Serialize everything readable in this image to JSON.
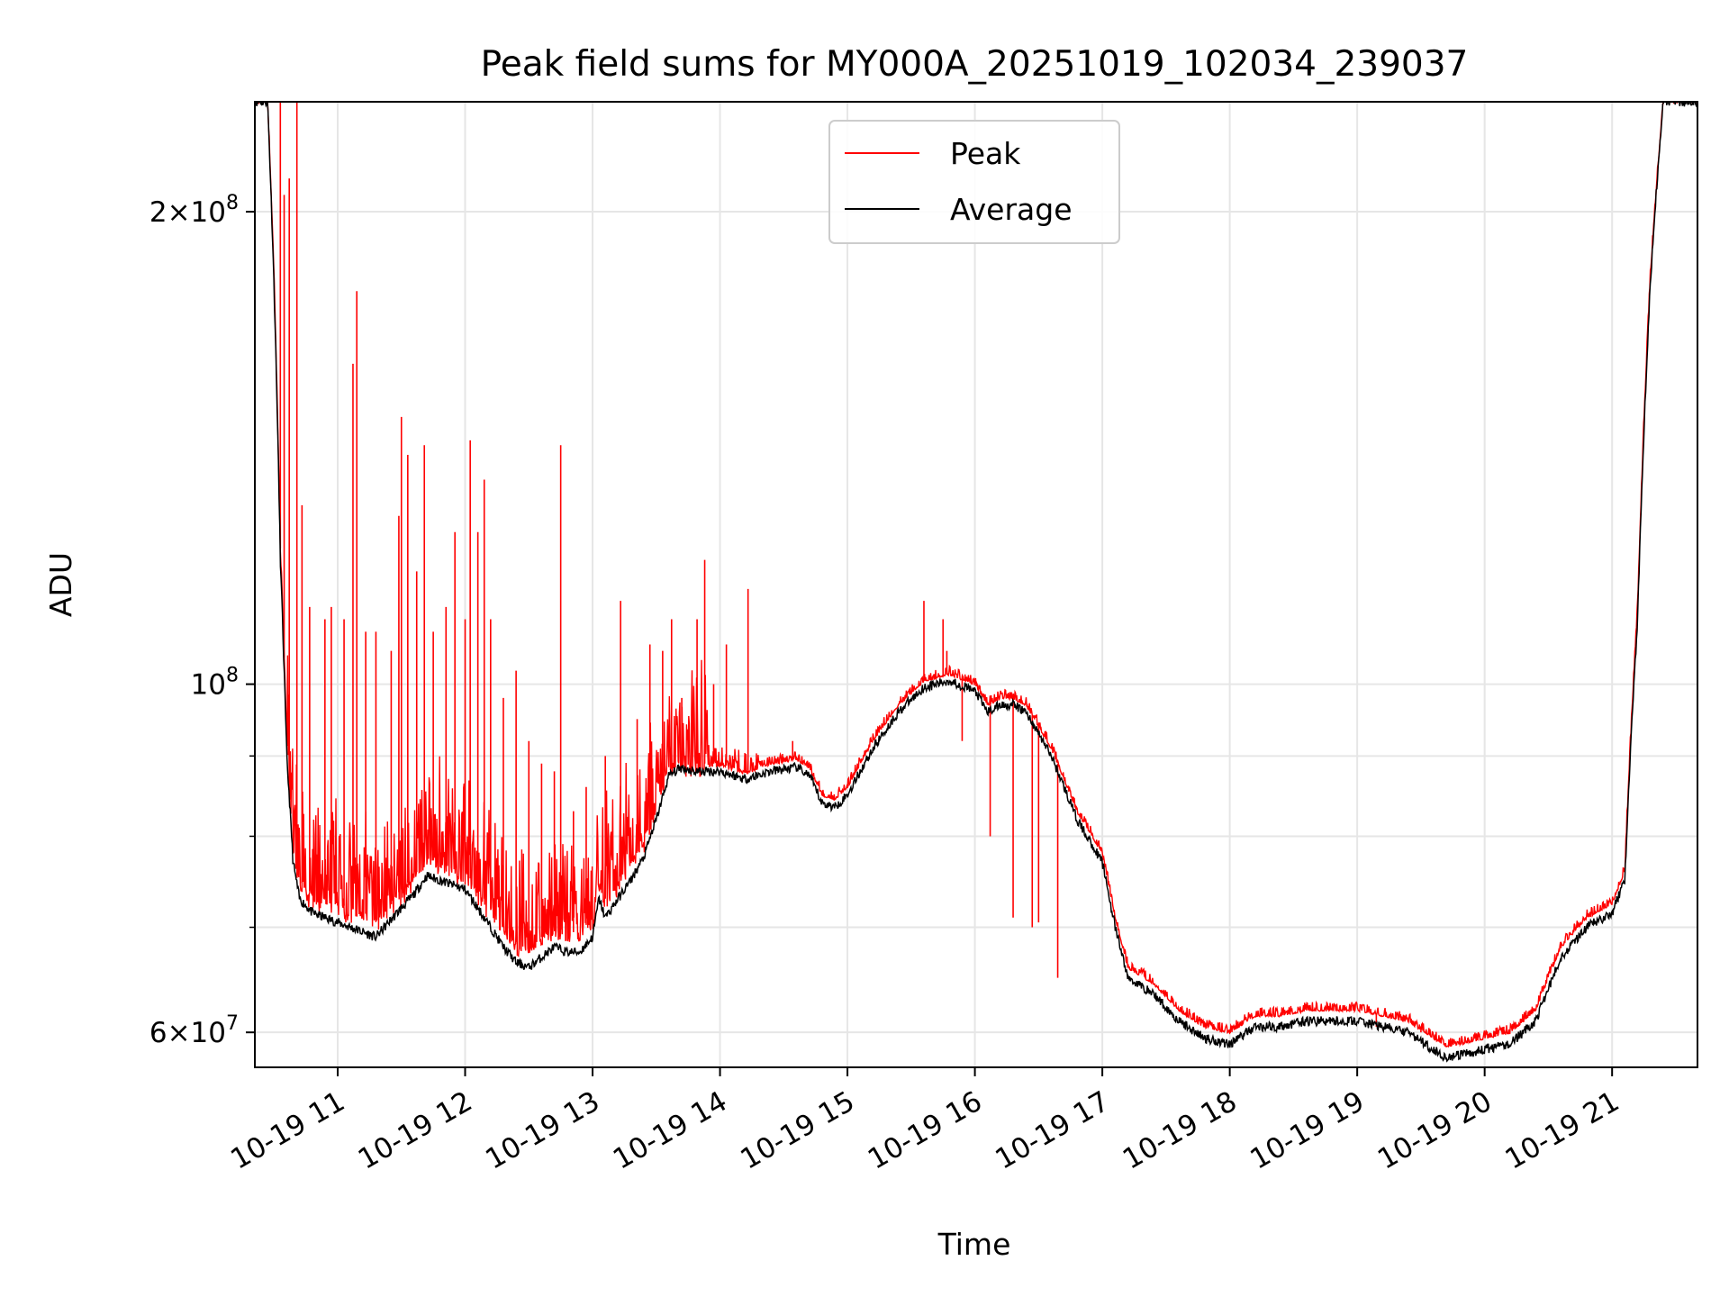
{
  "chart_data": {
    "type": "line",
    "title": "Peak field sums for MY000A_20251019_102034_239037",
    "xlabel": "Time",
    "ylabel": "ADU",
    "yscale": "log",
    "grid": true,
    "legend_position": "top-center",
    "xlim": [
      10.35,
      21.67
    ],
    "ylim": [
      57000000,
      235000000
    ],
    "x_ticks": [
      {
        "value": 11,
        "label": "10-19 11"
      },
      {
        "value": 12,
        "label": "10-19 12"
      },
      {
        "value": 13,
        "label": "10-19 13"
      },
      {
        "value": 14,
        "label": "10-19 14"
      },
      {
        "value": 15,
        "label": "10-19 15"
      },
      {
        "value": 16,
        "label": "10-19 16"
      },
      {
        "value": 17,
        "label": "10-19 17"
      },
      {
        "value": 18,
        "label": "10-19 18"
      },
      {
        "value": 19,
        "label": "10-19 19"
      },
      {
        "value": 20,
        "label": "10-19 20"
      },
      {
        "value": 21,
        "label": "10-19 21"
      }
    ],
    "y_ticks": [
      {
        "value": 60000000,
        "base": "6",
        "exp": "7"
      },
      {
        "value": 100000000,
        "base": "",
        "exp": "8"
      },
      {
        "value": 200000000,
        "base": "2",
        "exp": "8"
      }
    ],
    "y_minor_ticks": [
      70000000,
      80000000,
      90000000
    ],
    "legend": [
      "Peak",
      "Average"
    ],
    "series": [
      {
        "name": "Average",
        "color": "#000000",
        "x": [
          10.35,
          10.45,
          10.5,
          10.55,
          10.6,
          10.65,
          10.7,
          10.8,
          10.9,
          11.0,
          11.1,
          11.2,
          11.3,
          11.4,
          11.5,
          11.6,
          11.7,
          11.8,
          11.9,
          12.0,
          12.1,
          12.2,
          12.3,
          12.4,
          12.5,
          12.6,
          12.7,
          12.8,
          12.9,
          13.0,
          13.05,
          13.1,
          13.2,
          13.3,
          13.4,
          13.5,
          13.6,
          13.7,
          13.8,
          14.0,
          14.2,
          14.4,
          14.6,
          14.7,
          14.8,
          14.9,
          15.0,
          15.2,
          15.4,
          15.6,
          15.8,
          16.0,
          16.1,
          16.2,
          16.3,
          16.4,
          16.6,
          16.8,
          17.0,
          17.1,
          17.2,
          17.4,
          17.6,
          17.8,
          18.0,
          18.2,
          18.4,
          18.6,
          18.8,
          19.0,
          19.2,
          19.4,
          19.6,
          19.7,
          19.8,
          20.0,
          20.2,
          20.4,
          20.6,
          20.8,
          21.0,
          21.1,
          21.2,
          21.3,
          21.4,
          21.5,
          21.67
        ],
        "values": [
          235000000,
          235000000,
          180000000,
          120000000,
          90000000,
          77000000,
          73000000,
          71500000,
          71000000,
          70500000,
          70000000,
          69500000,
          69000000,
          70500000,
          72000000,
          73500000,
          75500000,
          75000000,
          74500000,
          74000000,
          72000000,
          70000000,
          68000000,
          66500000,
          66000000,
          67000000,
          68000000,
          67500000,
          67500000,
          69000000,
          73000000,
          71000000,
          73000000,
          75000000,
          77500000,
          82000000,
          87500000,
          88500000,
          88000000,
          88000000,
          87000000,
          88000000,
          88500000,
          87500000,
          84000000,
          83500000,
          85000000,
          91000000,
          96000000,
          99500000,
          100500000,
          99000000,
          96000000,
          97000000,
          97000000,
          96000000,
          90000000,
          82000000,
          77000000,
          70000000,
          65000000,
          63500000,
          61000000,
          59500000,
          59000000,
          60500000,
          60500000,
          61000000,
          61000000,
          61000000,
          60500000,
          60000000,
          58500000,
          57800000,
          58000000,
          58500000,
          59000000,
          61000000,
          67000000,
          70000000,
          71500000,
          75000000,
          110000000,
          180000000,
          235000000,
          235000000,
          235000000
        ]
      },
      {
        "name": "Peak",
        "color": "#ff0000",
        "x": [
          10.35,
          10.45,
          10.5,
          10.55,
          10.6,
          10.65,
          10.7,
          10.8,
          10.9,
          11.0,
          11.1,
          11.2,
          11.3,
          11.4,
          11.5,
          11.6,
          11.7,
          11.8,
          11.9,
          12.0,
          12.1,
          12.2,
          12.3,
          12.4,
          12.5,
          12.6,
          12.7,
          12.8,
          12.9,
          13.0,
          13.05,
          13.1,
          13.2,
          13.3,
          13.4,
          13.5,
          13.6,
          13.7,
          13.8,
          14.0,
          14.2,
          14.4,
          14.6,
          14.7,
          14.8,
          14.9,
          15.0,
          15.2,
          15.4,
          15.6,
          15.8,
          16.0,
          16.1,
          16.2,
          16.3,
          16.4,
          16.6,
          16.8,
          17.0,
          17.1,
          17.2,
          17.4,
          17.6,
          17.8,
          18.0,
          18.2,
          18.4,
          18.6,
          18.8,
          19.0,
          19.2,
          19.4,
          19.6,
          19.7,
          19.8,
          20.0,
          20.2,
          20.4,
          20.6,
          20.8,
          21.0,
          21.1,
          21.2,
          21.3,
          21.4,
          21.5,
          21.67
        ],
        "values": [
          235000000,
          235000000,
          182000000,
          122000000,
          92000000,
          79000000,
          75000000,
          73500000,
          73000000,
          72500000,
          72000000,
          71500000,
          71000000,
          72500000,
          74000000,
          75500000,
          77500000,
          77000000,
          76500000,
          76000000,
          74000000,
          72000000,
          70000000,
          68500000,
          68000000,
          69000000,
          70000000,
          69500000,
          69500000,
          71000000,
          75000000,
          73000000,
          75000000,
          77000000,
          79500000,
          84000000,
          89000000,
          89500000,
          89000000,
          89000000,
          88000000,
          89000000,
          89500000,
          88500000,
          85000000,
          84500000,
          86000000,
          92000000,
          97000000,
          100500000,
          101500000,
          100000000,
          97000000,
          98000000,
          98000000,
          97000000,
          91000000,
          83000000,
          78000000,
          71000000,
          66000000,
          64500000,
          62000000,
          60500000,
          60000000,
          61500000,
          61500000,
          62000000,
          62000000,
          62000000,
          61500000,
          61000000,
          59500000,
          58800000,
          59000000,
          59500000,
          60000000,
          62000000,
          68000000,
          71000000,
          72500000,
          76000000,
          112000000,
          182000000,
          235000000,
          235000000,
          235000000
        ],
        "spikes": [
          {
            "x": 10.55,
            "value": 235000000
          },
          {
            "x": 10.58,
            "value": 205000000
          },
          {
            "x": 10.62,
            "value": 210000000
          },
          {
            "x": 10.68,
            "value": 235000000
          },
          {
            "x": 10.72,
            "value": 130000000
          },
          {
            "x": 10.78,
            "value": 112000000
          },
          {
            "x": 10.9,
            "value": 110000000
          },
          {
            "x": 10.95,
            "value": 112000000
          },
          {
            "x": 11.05,
            "value": 110000000
          },
          {
            "x": 11.12,
            "value": 160000000
          },
          {
            "x": 11.15,
            "value": 178000000
          },
          {
            "x": 11.22,
            "value": 108000000
          },
          {
            "x": 11.3,
            "value": 108000000
          },
          {
            "x": 11.42,
            "value": 105000000
          },
          {
            "x": 11.48,
            "value": 128000000
          },
          {
            "x": 11.5,
            "value": 148000000
          },
          {
            "x": 11.55,
            "value": 140000000
          },
          {
            "x": 11.62,
            "value": 118000000
          },
          {
            "x": 11.68,
            "value": 142000000
          },
          {
            "x": 11.75,
            "value": 108000000
          },
          {
            "x": 11.85,
            "value": 112000000
          },
          {
            "x": 11.92,
            "value": 125000000
          },
          {
            "x": 12.0,
            "value": 110000000
          },
          {
            "x": 12.04,
            "value": 143000000
          },
          {
            "x": 12.1,
            "value": 125000000
          },
          {
            "x": 12.15,
            "value": 135000000
          },
          {
            "x": 12.2,
            "value": 110000000
          },
          {
            "x": 12.3,
            "value": 98000000
          },
          {
            "x": 12.4,
            "value": 102000000
          },
          {
            "x": 12.5,
            "value": 92000000
          },
          {
            "x": 12.6,
            "value": 89000000
          },
          {
            "x": 12.7,
            "value": 88000000
          },
          {
            "x": 12.75,
            "value": 142000000
          },
          {
            "x": 12.85,
            "value": 83000000
          },
          {
            "x": 12.95,
            "value": 86000000
          },
          {
            "x": 13.1,
            "value": 90000000
          },
          {
            "x": 13.22,
            "value": 113000000
          },
          {
            "x": 13.35,
            "value": 95000000
          },
          {
            "x": 13.45,
            "value": 106000000
          },
          {
            "x": 13.55,
            "value": 105000000
          },
          {
            "x": 13.62,
            "value": 110000000
          },
          {
            "x": 13.7,
            "value": 98000000
          },
          {
            "x": 13.82,
            "value": 110000000
          },
          {
            "x": 13.88,
            "value": 120000000
          },
          {
            "x": 13.95,
            "value": 100000000
          },
          {
            "x": 14.05,
            "value": 106000000
          },
          {
            "x": 14.22,
            "value": 115000000
          },
          {
            "x": 14.57,
            "value": 92000000
          },
          {
            "x": 15.6,
            "value": 113000000
          },
          {
            "x": 15.75,
            "value": 110000000
          },
          {
            "x": 15.78,
            "value": 105000000
          },
          {
            "x": 15.9,
            "value": 92000000
          },
          {
            "x": 16.12,
            "value": 80000000
          },
          {
            "x": 16.3,
            "value": 71000000
          },
          {
            "x": 16.45,
            "value": 70000000
          },
          {
            "x": 16.5,
            "value": 70500000
          },
          {
            "x": 16.65,
            "value": 65000000
          },
          {
            "x": 19.15,
            "value": 60500000
          },
          {
            "x": 19.5,
            "value": 60000000
          },
          {
            "x": 20.15,
            "value": 60500000
          }
        ]
      }
    ]
  }
}
